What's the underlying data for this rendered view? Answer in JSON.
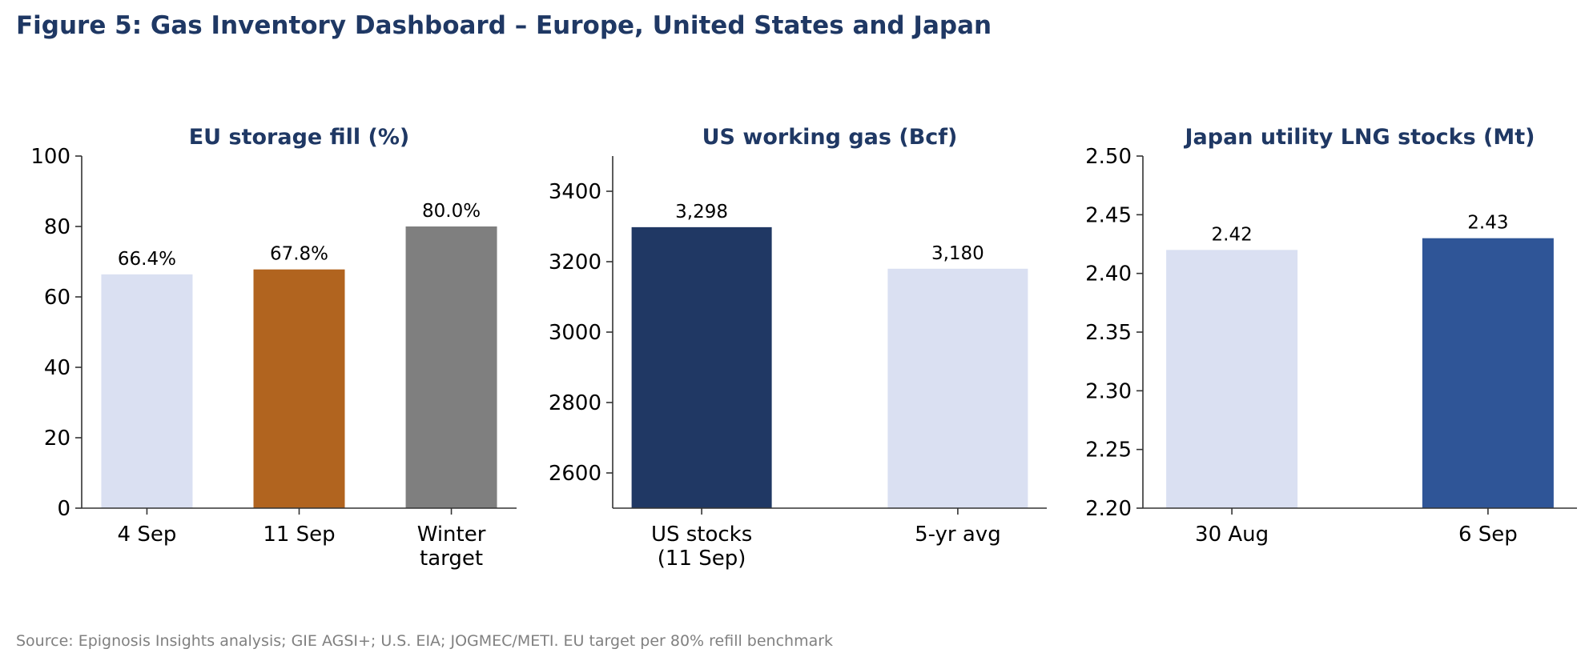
{
  "figure": {
    "title": "Figure 5: Gas Inventory Dashboard – Europe, United States and Japan",
    "source": "Source: Epignosis Insights analysis; GIE AGSI+; U.S. EIA; JOGMEC/METI. EU target per 80% refill benchmark"
  },
  "chart_data": [
    {
      "type": "bar",
      "title": "EU storage fill (%)",
      "categories": [
        [
          "4 Sep"
        ],
        [
          "11 Sep"
        ],
        [
          "Winter",
          "target"
        ]
      ],
      "values": [
        66.4,
        67.8,
        80.0
      ],
      "labels": [
        "66.4%",
        "67.8%",
        "80.0%"
      ],
      "colors": [
        "#dae0f2",
        "#b1641f",
        "#7f7f7f"
      ],
      "ylim": [
        0,
        100
      ],
      "yticks": [
        0,
        20,
        40,
        60,
        80,
        100
      ],
      "ytick_labels": [
        "0",
        "20",
        "40",
        "60",
        "80",
        "100"
      ],
      "grid": false
    },
    {
      "type": "bar",
      "title": "US working gas (Bcf)",
      "categories": [
        [
          "US stocks",
          "(11 Sep)"
        ],
        [
          "5-yr avg"
        ]
      ],
      "values": [
        3298,
        3180
      ],
      "labels": [
        "3,298",
        "3,180"
      ],
      "colors": [
        "#203864",
        "#dae0f2"
      ],
      "ylim": [
        2500,
        3500
      ],
      "yticks": [
        2600,
        2800,
        3000,
        3200,
        3400
      ],
      "ytick_labels": [
        "2600",
        "2800",
        "3000",
        "3200",
        "3400"
      ],
      "grid": false
    },
    {
      "type": "bar",
      "title": "Japan utility LNG stocks (Mt)",
      "categories": [
        [
          "30 Aug"
        ],
        [
          "6 Sep"
        ]
      ],
      "values": [
        2.42,
        2.43
      ],
      "labels": [
        "2.42",
        "2.43"
      ],
      "colors": [
        "#dae0f2",
        "#2f5597"
      ],
      "ylim": [
        2.2,
        2.5
      ],
      "yticks": [
        2.2,
        2.25,
        2.3,
        2.35,
        2.4,
        2.45,
        2.5
      ],
      "ytick_labels": [
        "2.20",
        "2.25",
        "2.30",
        "2.35",
        "2.40",
        "2.45",
        "2.50"
      ],
      "grid": false
    }
  ]
}
